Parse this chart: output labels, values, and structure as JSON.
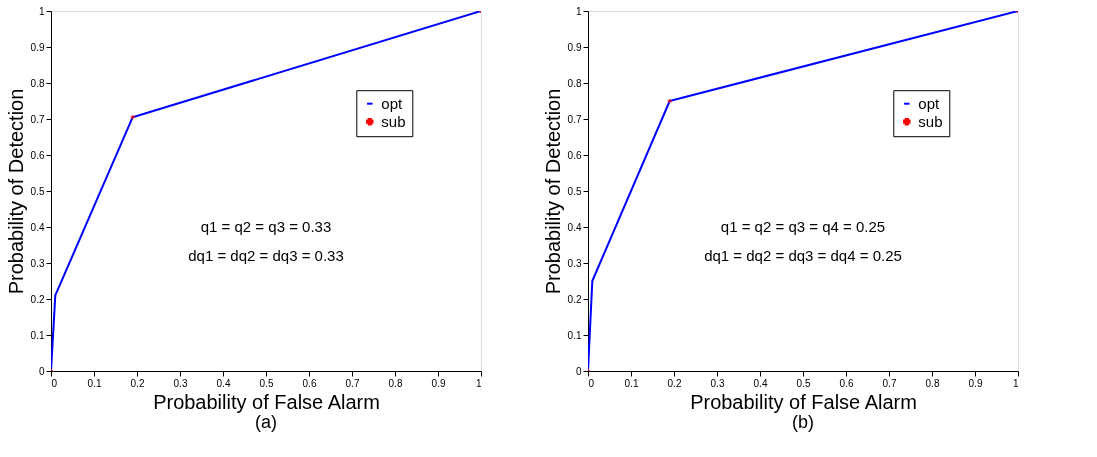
{
  "chart_data": [
    {
      "type": "line",
      "xlabel": "Probability of False Alarm",
      "ylabel": "Probability of Detection",
      "xlim": [
        0,
        1
      ],
      "ylim": [
        0,
        1
      ],
      "xticks": [
        0,
        0.1,
        0.2,
        0.3,
        0.4,
        0.5,
        0.6,
        0.7,
        0.8,
        0.9,
        1
      ],
      "yticks": [
        0,
        0.1,
        0.2,
        0.3,
        0.4,
        0.5,
        0.6,
        0.7,
        0.8,
        0.9,
        1
      ],
      "grid": false,
      "legend": "top right",
      "series": [
        {
          "name": "opt",
          "type": "line",
          "color": "#0000ff",
          "marker": "none",
          "x": [
            0,
            0.01,
            0.19,
            1
          ],
          "values": [
            0,
            0.21,
            0.705,
            1
          ]
        },
        {
          "name": "sub",
          "type": "scatter",
          "color": "#ff0000",
          "marker": "cross",
          "x": [
            0,
            0.19,
            1
          ],
          "values": [
            0,
            0.705,
            1
          ]
        }
      ],
      "annotations": [
        "q1 = q2 = q3 = 0.33",
        "dq1 = dq2 = dq3 = 0.33",
        "(a)"
      ]
    },
    {
      "type": "line",
      "xlabel": "Probability of False Alarm",
      "ylabel": "Probability of Detection",
      "xlim": [
        0,
        1
      ],
      "ylim": [
        0,
        1
      ],
      "xticks": [
        0,
        0.1,
        0.2,
        0.3,
        0.4,
        0.5,
        0.6,
        0.7,
        0.8,
        0.9,
        1
      ],
      "yticks": [
        0,
        0.1,
        0.2,
        0.3,
        0.4,
        0.5,
        0.6,
        0.7,
        0.8,
        0.9,
        1
      ],
      "grid": false,
      "legend": "top right",
      "series": [
        {
          "name": "opt",
          "type": "line",
          "color": "#0000ff",
          "marker": "none",
          "x": [
            0,
            0.01,
            0.19,
            1
          ],
          "values": [
            0,
            0.25,
            0.75,
            1
          ]
        },
        {
          "name": "sub",
          "type": "scatter",
          "color": "#ff0000",
          "marker": "cross",
          "x": [
            0,
            0.19,
            1
          ],
          "values": [
            0,
            0.75,
            1
          ]
        }
      ],
      "annotations": [
        "q1 = q2 = q3 = q4 = 0.25",
        "dq1 = dq2 = dq3 = dq4 = 0.25",
        "(b)"
      ]
    }
  ]
}
